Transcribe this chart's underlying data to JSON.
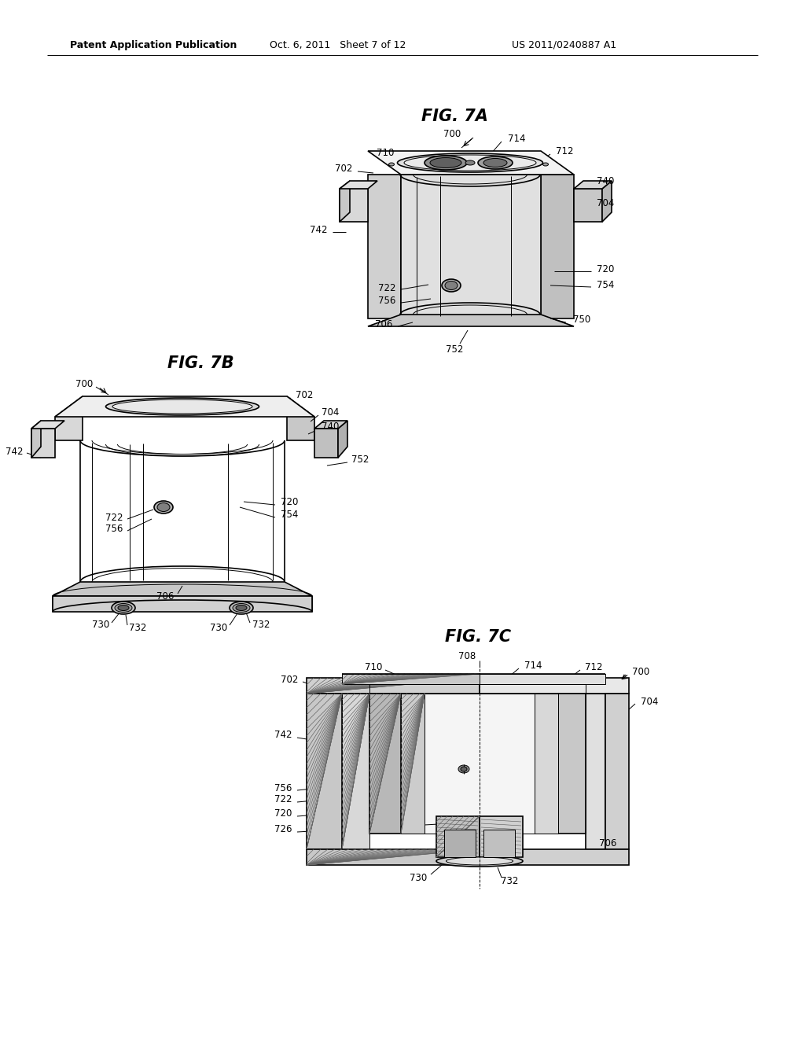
{
  "background_color": "#ffffff",
  "header_left": "Patent Application Publication",
  "header_center": "Oct. 6, 2011   Sheet 7 of 12",
  "header_right": "US 2011/0240887 A1",
  "fig7a_title": "FIG. 7A",
  "fig7b_title": "FIG. 7B",
  "fig7c_title": "FIG. 7C",
  "line_color": "#000000",
  "text_color": "#000000",
  "lw_thin": 0.7,
  "lw_med": 1.2,
  "lw_thick": 1.8
}
